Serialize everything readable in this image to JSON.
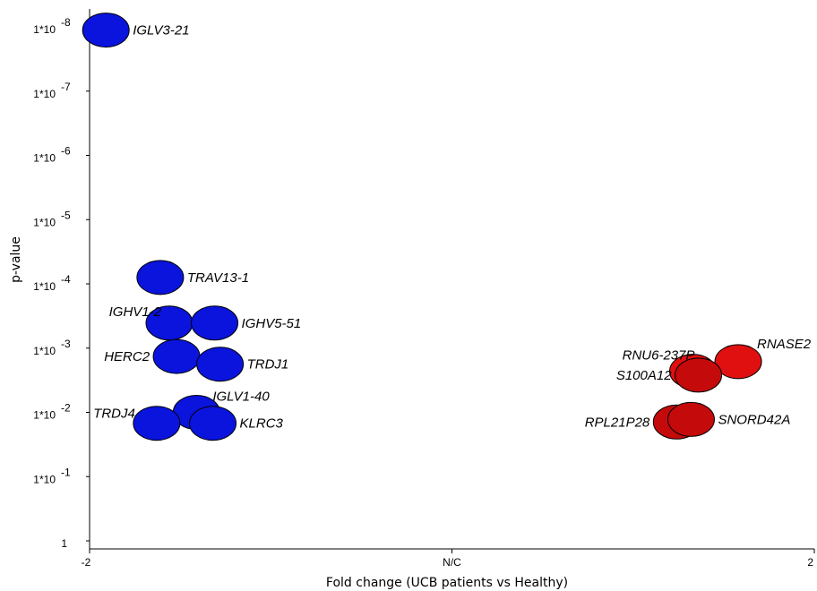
{
  "chart_data": {
    "type": "scatter",
    "xlabel": "Fold change (UCB patients vs Healthy)",
    "ylabel": "p-value",
    "xlim": [
      -2,
      2
    ],
    "ylim": [
      0,
      8
    ],
    "x_ticks": [
      {
        "value": -2,
        "label": "-2"
      },
      {
        "value": 0,
        "label": "N/C"
      },
      {
        "value": 2,
        "label": "2"
      }
    ],
    "y_ticks": [
      {
        "value": 0,
        "base": "1",
        "exp": ""
      },
      {
        "value": 1,
        "base": "1*10",
        "exp": "-1"
      },
      {
        "value": 2,
        "base": "1*10",
        "exp": "-2"
      },
      {
        "value": 3,
        "base": "1*10",
        "exp": "-3"
      },
      {
        "value": 4,
        "base": "1*10",
        "exp": "-4"
      },
      {
        "value": 5,
        "base": "1*10",
        "exp": "-5"
      },
      {
        "value": 6,
        "base": "1*10",
        "exp": "-6"
      },
      {
        "value": 7,
        "base": "1*10",
        "exp": "-7"
      },
      {
        "value": 8,
        "base": "1*10",
        "exp": "-8"
      }
    ],
    "colors": {
      "down": "#0a14dc",
      "up_light": "#e01010",
      "up_dark": "#c40a0a"
    },
    "points": [
      {
        "label": "IGLV3-21",
        "x": -1.91,
        "y": 7.95,
        "color": "down",
        "label_side": "right"
      },
      {
        "label": "TRAV13-1",
        "x": -1.61,
        "y": 4.1,
        "color": "down",
        "label_side": "right"
      },
      {
        "label": "IGHV1-2",
        "x": -1.56,
        "y": 3.39,
        "color": "down",
        "label_side": "left-top"
      },
      {
        "label": "IGHV5-51",
        "x": -1.31,
        "y": 3.39,
        "color": "down",
        "label_side": "right"
      },
      {
        "label": "HERC2",
        "x": -1.52,
        "y": 2.87,
        "color": "down",
        "label_side": "left"
      },
      {
        "label": "TRDJ1",
        "x": -1.28,
        "y": 2.75,
        "color": "down",
        "label_side": "right"
      },
      {
        "label": "IGLV1-40",
        "x": -1.41,
        "y": 2.0,
        "color": "down",
        "label_side": "right-top"
      },
      {
        "label": "TRDJ4",
        "x": -1.63,
        "y": 1.83,
        "color": "down",
        "label_side": "left-top"
      },
      {
        "label": "KLRC3",
        "x": -1.32,
        "y": 1.83,
        "color": "down",
        "label_side": "right"
      },
      {
        "label": "RNASE2",
        "x": 1.58,
        "y": 2.79,
        "color": "up_light",
        "label_side": "right-top"
      },
      {
        "label": "RNU6-237P",
        "x": 1.33,
        "y": 2.64,
        "color": "up_light",
        "label_side": "left-top"
      },
      {
        "label": "S100A12",
        "x": 1.36,
        "y": 2.58,
        "color": "up_dark",
        "label_side": "left"
      },
      {
        "label": "RPL21P28",
        "x": 1.24,
        "y": 1.85,
        "color": "up_dark",
        "label_side": "left"
      },
      {
        "label": "SNORD42A",
        "x": 1.32,
        "y": 1.89,
        "color": "up_dark",
        "label_side": "right"
      }
    ]
  }
}
